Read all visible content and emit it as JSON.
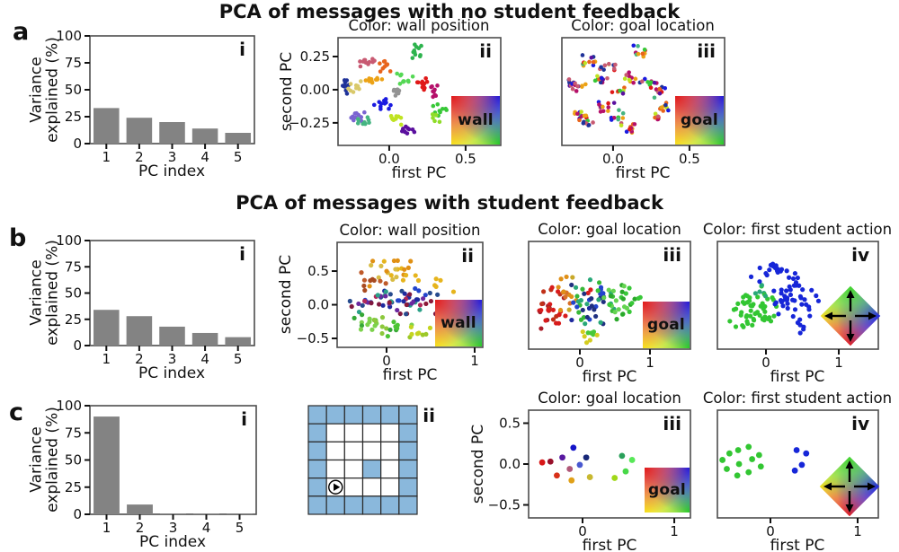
{
  "figure": {
    "rows": [
      {
        "letter": "a",
        "title": "PCA of messages with no student feedback"
      },
      {
        "letter": "b",
        "title": "PCA of messages with student feedback"
      },
      {
        "letter": "c",
        "title": ""
      }
    ]
  },
  "colors": {
    "bar": "#838383",
    "axis": "#111111",
    "panel_border": "#4d4d4d",
    "maze_wall_blue": "#8ab8dc",
    "maze_line": "#2b2b2b",
    "action_green": "#32c632",
    "action_blue": "#1626d8"
  },
  "chart_data": [
    {
      "id": "a-i",
      "tag": "i",
      "type": "bar",
      "xlabel": "PC index",
      "ylabel_lines": [
        "Variance",
        "explained (%)"
      ],
      "categories": [
        "1",
        "2",
        "3",
        "4",
        "5"
      ],
      "values": [
        33,
        24,
        20,
        14,
        10
      ],
      "ylim": [
        0,
        100
      ],
      "yticks": [
        {
          "v": 0,
          "label": "0"
        },
        {
          "v": 25,
          "label": "25"
        },
        {
          "v": 50,
          "label": "50"
        },
        {
          "v": 75,
          "label": "75"
        },
        {
          "v": 100,
          "label": "100"
        }
      ]
    },
    {
      "id": "a-ii",
      "tag": "ii",
      "type": "scatter",
      "title": "Color: wall position",
      "xlabel": "first PC",
      "ylabel": "second PC",
      "xlim": [
        -0.335,
        0.73
      ],
      "ylim": [
        -0.42,
        0.392
      ],
      "xticks": [
        {
          "v": 0,
          "label": "0.0"
        },
        {
          "v": 0.5,
          "label": "0.5"
        }
      ],
      "yticks": [
        {
          "v": 0.25,
          "label": "0.25"
        },
        {
          "v": 0,
          "label": "0.00"
        },
        {
          "v": -0.25,
          "label": "−0.25"
        }
      ],
      "legend": {
        "kind": "colormap-square",
        "label": "wall"
      },
      "clusters": [
        {
          "cx": -0.15,
          "cy": 0.21,
          "sx": 0.05,
          "sy": 0.035,
          "n": 11,
          "colors": [
            "#c85a72"
          ]
        },
        {
          "cx": -0.03,
          "cy": 0.17,
          "sx": 0.045,
          "sy": 0.035,
          "n": 10,
          "colors": [
            "#e8641c"
          ]
        },
        {
          "cx": 0.16,
          "cy": 0.29,
          "sx": 0.04,
          "sy": 0.04,
          "n": 11,
          "colors": [
            "#2db34d"
          ]
        },
        {
          "cx": 0.1,
          "cy": 0.09,
          "sx": 0.04,
          "sy": 0.045,
          "n": 10,
          "colors": [
            "#55d855"
          ]
        },
        {
          "cx": 0.23,
          "cy": 0.05,
          "sx": 0.05,
          "sy": 0.045,
          "n": 11,
          "colors": [
            "#e01818"
          ]
        },
        {
          "cx": 0.31,
          "cy": -0.01,
          "sx": 0.04,
          "sy": 0.035,
          "n": 9,
          "colors": [
            "#b5106a"
          ]
        },
        {
          "cx": 0.05,
          "cy": -0.01,
          "sx": 0.045,
          "sy": 0.025,
          "n": 9,
          "colors": [
            "#939393"
          ]
        },
        {
          "cx": -0.28,
          "cy": 0.03,
          "sx": 0.03,
          "sy": 0.045,
          "n": 10,
          "colors": [
            "#1f3299"
          ]
        },
        {
          "cx": -0.22,
          "cy": 0.02,
          "sx": 0.04,
          "sy": 0.035,
          "n": 9,
          "colors": [
            "#d9c96a"
          ]
        },
        {
          "cx": -0.1,
          "cy": 0.08,
          "sx": 0.05,
          "sy": 0.03,
          "n": 10,
          "colors": [
            "#eca215"
          ]
        },
        {
          "cx": -0.05,
          "cy": -0.12,
          "sx": 0.045,
          "sy": 0.04,
          "n": 11,
          "colors": [
            "#1a1ae0"
          ]
        },
        {
          "cx": -0.21,
          "cy": -0.19,
          "sx": 0.04,
          "sy": 0.04,
          "n": 10,
          "colors": [
            "#7a63d1"
          ]
        },
        {
          "cx": -0.17,
          "cy": -0.23,
          "sx": 0.04,
          "sy": 0.035,
          "n": 9,
          "colors": [
            "#45b581"
          ]
        },
        {
          "cx": 0.03,
          "cy": -0.21,
          "sx": 0.045,
          "sy": 0.045,
          "n": 10,
          "colors": [
            "#bfe322"
          ]
        },
        {
          "cx": 0.11,
          "cy": -0.3,
          "sx": 0.045,
          "sy": 0.035,
          "n": 10,
          "colors": [
            "#5a0f9e"
          ]
        },
        {
          "cx": 0.33,
          "cy": -0.14,
          "sx": 0.035,
          "sy": 0.04,
          "n": 9,
          "colors": [
            "#37c837"
          ]
        },
        {
          "cx": 0.3,
          "cy": -0.21,
          "sx": 0.03,
          "sy": 0.03,
          "n": 6,
          "colors": [
            "#8fdc28"
          ]
        }
      ]
    },
    {
      "id": "a-iii",
      "tag": "iii",
      "type": "scatter",
      "title": "Color: goal location",
      "xlabel": "first PC",
      "xlim": [
        -0.335,
        0.73
      ],
      "ylim": [
        -0.42,
        0.392
      ],
      "xticks": [
        {
          "v": 0,
          "label": "0.0"
        },
        {
          "v": 0.5,
          "label": "0.5"
        }
      ],
      "yticks": [],
      "legend": {
        "kind": "colormap-square",
        "label": "goal"
      },
      "palette": [
        "#e01818",
        "#1a1ae0",
        "#37c837",
        "#eca215",
        "#b5106a",
        "#5a0f9e",
        "#1f3299",
        "#bfe322",
        "#e8641c",
        "#45b581",
        "#c85a72"
      ],
      "clusters": [
        {
          "cx": -0.15,
          "cy": 0.21,
          "sx": 0.05,
          "sy": 0.035,
          "n": 11
        },
        {
          "cx": -0.03,
          "cy": 0.17,
          "sx": 0.045,
          "sy": 0.035,
          "n": 10
        },
        {
          "cx": 0.16,
          "cy": 0.29,
          "sx": 0.04,
          "sy": 0.04,
          "n": 11
        },
        {
          "cx": 0.1,
          "cy": 0.09,
          "sx": 0.04,
          "sy": 0.045,
          "n": 10
        },
        {
          "cx": 0.23,
          "cy": 0.05,
          "sx": 0.05,
          "sy": 0.045,
          "n": 11
        },
        {
          "cx": 0.31,
          "cy": -0.01,
          "sx": 0.04,
          "sy": 0.035,
          "n": 9
        },
        {
          "cx": 0.05,
          "cy": -0.01,
          "sx": 0.045,
          "sy": 0.025,
          "n": 9
        },
        {
          "cx": -0.28,
          "cy": 0.03,
          "sx": 0.03,
          "sy": 0.045,
          "n": 10
        },
        {
          "cx": -0.22,
          "cy": 0.02,
          "sx": 0.04,
          "sy": 0.035,
          "n": 9
        },
        {
          "cx": -0.1,
          "cy": 0.08,
          "sx": 0.05,
          "sy": 0.03,
          "n": 10
        },
        {
          "cx": -0.05,
          "cy": -0.12,
          "sx": 0.045,
          "sy": 0.04,
          "n": 11
        },
        {
          "cx": -0.21,
          "cy": -0.19,
          "sx": 0.04,
          "sy": 0.04,
          "n": 10
        },
        {
          "cx": -0.17,
          "cy": -0.23,
          "sx": 0.04,
          "sy": 0.035,
          "n": 9
        },
        {
          "cx": 0.03,
          "cy": -0.21,
          "sx": 0.045,
          "sy": 0.045,
          "n": 10
        },
        {
          "cx": 0.11,
          "cy": -0.3,
          "sx": 0.045,
          "sy": 0.035,
          "n": 10
        },
        {
          "cx": 0.33,
          "cy": -0.14,
          "sx": 0.035,
          "sy": 0.04,
          "n": 9
        },
        {
          "cx": 0.3,
          "cy": -0.21,
          "sx": 0.03,
          "sy": 0.03,
          "n": 6
        }
      ]
    },
    {
      "id": "b-i",
      "tag": "i",
      "type": "bar",
      "xlabel": "PC index",
      "ylabel_lines": [
        "Variance",
        "explained (%)"
      ],
      "categories": [
        "1",
        "2",
        "3",
        "4",
        "5"
      ],
      "values": [
        34,
        28,
        18,
        12,
        8
      ],
      "ylim": [
        0,
        100
      ],
      "yticks": [
        {
          "v": 0,
          "label": "0"
        },
        {
          "v": 25,
          "label": "25"
        },
        {
          "v": 50,
          "label": "50"
        },
        {
          "v": 75,
          "label": "75"
        },
        {
          "v": 100,
          "label": "100"
        }
      ]
    },
    {
      "id": "b-ii",
      "tag": "ii",
      "type": "scatter",
      "title": "Color: wall position",
      "xlabel": "first PC",
      "ylabel": "second PC",
      "xlim": [
        -0.561,
        1.092
      ],
      "ylim": [
        -0.633,
        0.927
      ],
      "xticks": [
        {
          "v": 0,
          "label": "0"
        },
        {
          "v": 1,
          "label": "1"
        }
      ],
      "yticks": [
        {
          "v": 0.5,
          "label": "0.5"
        },
        {
          "v": 0,
          "label": "0.0"
        },
        {
          "v": -0.5,
          "label": "−0.5"
        }
      ],
      "legend": {
        "kind": "colormap-square",
        "label": "wall"
      },
      "clusters": [
        {
          "cx": 0.1,
          "cy": 0.5,
          "sx": 0.3,
          "sy": 0.16,
          "n": 24,
          "colors": [
            "#e6b41c",
            "#e09014",
            "#d8bc44"
          ]
        },
        {
          "cx": -0.2,
          "cy": 0.36,
          "sx": 0.16,
          "sy": 0.14,
          "n": 9,
          "colors": [
            "#bf5a2a",
            "#a84a20"
          ]
        },
        {
          "cx": 0.55,
          "cy": 0.3,
          "sx": 0.18,
          "sy": 0.14,
          "n": 7,
          "colors": [
            "#e6b41c",
            "#2244cc"
          ]
        },
        {
          "cx": 0.12,
          "cy": 0.03,
          "sx": 0.4,
          "sy": 0.13,
          "n": 60,
          "colors": [
            "#1f2a9e",
            "#8c1a38",
            "#6a28a0",
            "#2aa088",
            "#2244cc",
            "#b02858",
            "#274b8e",
            "#801840"
          ]
        },
        {
          "cx": -0.12,
          "cy": -0.3,
          "sx": 0.28,
          "sy": 0.12,
          "n": 26,
          "colors": [
            "#4cc434",
            "#7cd24c",
            "#36a836",
            "#8cc83c"
          ]
        },
        {
          "cx": 0.32,
          "cy": -0.38,
          "sx": 0.16,
          "sy": 0.08,
          "n": 8,
          "colors": [
            "#c4d41f",
            "#9cc828"
          ]
        },
        {
          "cx": 0.7,
          "cy": -0.05,
          "sx": 0.12,
          "sy": 0.1,
          "n": 5,
          "colors": [
            "#6a28a0",
            "#e08878"
          ]
        }
      ]
    },
    {
      "id": "b-iii",
      "tag": "iii",
      "type": "scatter",
      "title": "Color: goal location",
      "xlabel": "first PC",
      "xlim": [
        -0.731,
        1.577
      ],
      "ylim": [
        -0.633,
        0.927
      ],
      "xticks": [
        {
          "v": 0,
          "label": "0"
        },
        {
          "v": 1,
          "label": "1"
        }
      ],
      "yticks": [],
      "legend": {
        "kind": "colormap-square",
        "label": "goal"
      },
      "clusters": [
        {
          "cx": -0.42,
          "cy": -0.05,
          "sx": 0.16,
          "sy": 0.26,
          "n": 28,
          "colors": [
            "#d81c1c",
            "#a81c28",
            "#c03018"
          ]
        },
        {
          "cx": -0.18,
          "cy": 0.05,
          "sx": 0.12,
          "sy": 0.28,
          "n": 14,
          "colors": [
            "#e09018",
            "#d87028",
            "#c8a828"
          ]
        },
        {
          "cx": 0.15,
          "cy": 0.02,
          "sx": 0.28,
          "sy": 0.26,
          "n": 46,
          "colors": [
            "#1f2a9e",
            "#2244cc",
            "#38b838",
            "#28a878",
            "#203080",
            "#d81c1c"
          ]
        },
        {
          "cx": 0.6,
          "cy": 0.05,
          "sx": 0.26,
          "sy": 0.22,
          "n": 28,
          "colors": [
            "#38c838",
            "#64d450",
            "#2aa82a"
          ]
        },
        {
          "cx": 0.12,
          "cy": -0.42,
          "sx": 0.2,
          "sy": 0.08,
          "n": 9,
          "colors": [
            "#d4cc20",
            "#48c838"
          ]
        }
      ]
    },
    {
      "id": "b-iv",
      "tag": "iv",
      "type": "scatter",
      "title": "Color: first student action",
      "xlabel": "first PC",
      "xlim": [
        -0.667,
        1.543
      ],
      "ylim": [
        -0.633,
        0.927
      ],
      "xticks": [
        {
          "v": 0,
          "label": "0"
        },
        {
          "v": 1,
          "label": "1"
        }
      ],
      "yticks": [],
      "legend": {
        "kind": "colormap-diamond",
        "arrows": [
          "up",
          "right",
          "down",
          "left"
        ]
      },
      "clusters": [
        {
          "cx": -0.22,
          "cy": -0.1,
          "sx": 0.26,
          "sy": 0.2,
          "n": 48,
          "colors": [
            "#32c632"
          ]
        },
        {
          "cx": -0.02,
          "cy": 0.12,
          "sx": 0.14,
          "sy": 0.12,
          "n": 10,
          "colors": [
            "#32c632",
            "#2aa878"
          ]
        },
        {
          "cx": 0.38,
          "cy": 0.12,
          "sx": 0.26,
          "sy": 0.2,
          "n": 40,
          "colors": [
            "#1626d8"
          ]
        },
        {
          "cx": 0.12,
          "cy": 0.5,
          "sx": 0.28,
          "sy": 0.14,
          "n": 20,
          "colors": [
            "#1626d8"
          ]
        },
        {
          "cx": 0.5,
          "cy": -0.28,
          "sx": 0.16,
          "sy": 0.1,
          "n": 7,
          "colors": [
            "#1626d8"
          ]
        }
      ]
    },
    {
      "id": "c-i",
      "tag": "i",
      "type": "bar",
      "xlabel": "PC index",
      "ylabel_lines": [
        "Variance",
        "explained (%)"
      ],
      "categories": [
        "1",
        "2",
        "3",
        "4",
        "5"
      ],
      "values": [
        90,
        9,
        0.6,
        0.4,
        0.3
      ],
      "ylim": [
        0,
        100
      ],
      "yticks": [
        {
          "v": 0,
          "label": "0"
        },
        {
          "v": 25,
          "label": "25"
        },
        {
          "v": 50,
          "label": "50"
        },
        {
          "v": 75,
          "label": "75"
        },
        {
          "v": 100,
          "label": "100"
        }
      ]
    },
    {
      "id": "c-ii",
      "tag": "ii",
      "type": "grid",
      "rows": 6,
      "cols": 6,
      "extra_wall_cells": [
        [
          3,
          3
        ]
      ],
      "agent_cell": [
        4,
        1
      ],
      "agent_icon": "play-circle",
      "wall_color": "#8ab8dc",
      "cell_color": "#ffffff",
      "line_color": "#2b2b2b"
    },
    {
      "id": "c-iii",
      "tag": "iii",
      "type": "scatter",
      "title": "Color: goal location",
      "xlabel": "first PC",
      "ylabel": "second PC",
      "xlim": [
        -0.588,
        1.176
      ],
      "ylim": [
        -0.659,
        0.659
      ],
      "xticks": [
        {
          "v": 0,
          "label": "0"
        },
        {
          "v": 1,
          "label": "1"
        }
      ],
      "yticks": [
        {
          "v": 0.5,
          "label": "0.5"
        },
        {
          "v": 0,
          "label": "0.0"
        },
        {
          "v": -0.5,
          "label": "−0.5"
        }
      ],
      "legend": {
        "kind": "colormap-square",
        "label": "goal"
      },
      "points": [
        [
          -0.44,
          0.02,
          "#d81818"
        ],
        [
          -0.35,
          0.03,
          "#98102a"
        ],
        [
          -0.28,
          -0.14,
          "#d83018"
        ],
        [
          -0.22,
          0.08,
          "#5818a0"
        ],
        [
          -0.14,
          -0.06,
          "#b05878"
        ],
        [
          -0.12,
          -0.2,
          "#e0a018"
        ],
        [
          -0.1,
          0.2,
          "#1414c8"
        ],
        [
          -0.03,
          -0.01,
          "#4858d0"
        ],
        [
          0.04,
          0.08,
          "#182878"
        ],
        [
          0.08,
          -0.16,
          "#c8b830"
        ],
        [
          0.35,
          -0.17,
          "#a0d818"
        ],
        [
          0.43,
          0.1,
          "#2aa05a"
        ],
        [
          0.47,
          -0.09,
          "#48d848"
        ],
        [
          0.54,
          0.05,
          "#58e858"
        ]
      ]
    },
    {
      "id": "c-iv",
      "tag": "iv",
      "type": "scatter",
      "title": "Color: first student action",
      "xlabel": "first PC",
      "xlim": [
        -0.608,
        1.237
      ],
      "ylim": [
        -0.659,
        0.659
      ],
      "xticks": [
        {
          "v": 0,
          "label": "0"
        },
        {
          "v": 1,
          "label": "1"
        }
      ],
      "yticks": [],
      "legend": {
        "kind": "colormap-diamond",
        "arrows": [
          "up",
          "right",
          "down",
          "left"
        ]
      },
      "points": [
        [
          -0.55,
          0.05,
          "#32c632"
        ],
        [
          -0.47,
          0.13,
          "#32c632"
        ],
        [
          -0.5,
          -0.06,
          "#32c632"
        ],
        [
          -0.37,
          0.17,
          "#32c632"
        ],
        [
          -0.36,
          0.0,
          "#32c632"
        ],
        [
          -0.38,
          -0.14,
          "#32c632"
        ],
        [
          -0.25,
          0.21,
          "#32c632"
        ],
        [
          -0.21,
          0.06,
          "#32c632"
        ],
        [
          -0.25,
          -0.1,
          "#32c632"
        ],
        [
          -0.13,
          0.11,
          "#32c632"
        ],
        [
          -0.11,
          -0.03,
          "#32c632"
        ],
        [
          0.3,
          0.17,
          "#1626d8"
        ],
        [
          0.41,
          0.13,
          "#1626d8"
        ],
        [
          0.36,
          -0.01,
          "#1626d8"
        ],
        [
          0.28,
          -0.08,
          "#1626d8"
        ]
      ]
    }
  ]
}
